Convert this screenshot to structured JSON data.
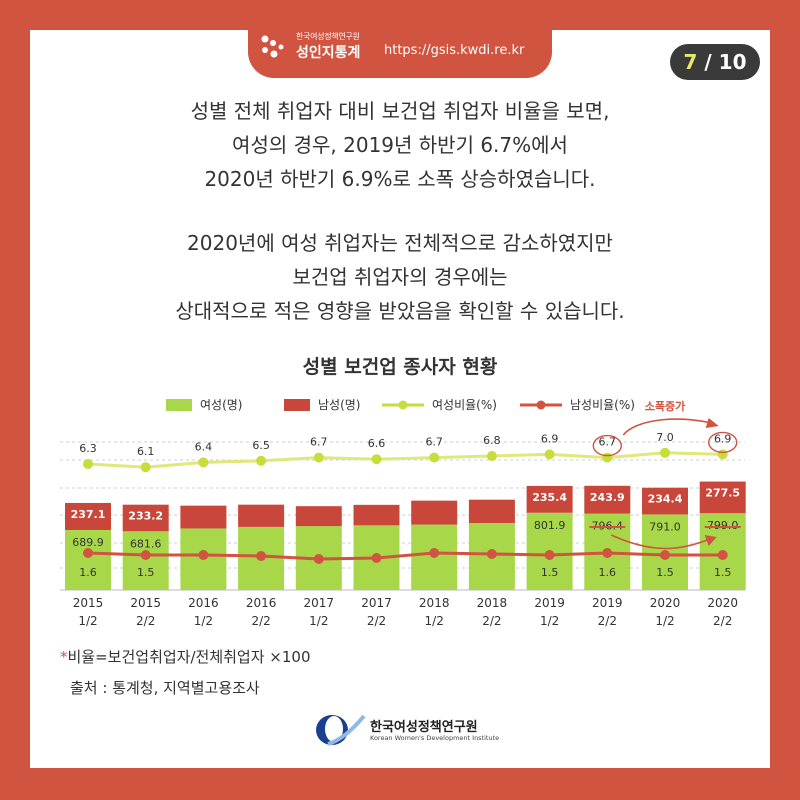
{
  "header": {
    "org_small": "한국여성정책연구원",
    "brand": "성인지통계",
    "url": "https://gsis.kwdi.re.kr",
    "page_current": "7",
    "page_total": "/ 10"
  },
  "intro": {
    "lines": [
      "성별 전체 취업자 대비 보건업 취업자 비율을 보면,",
      "여성의 경우, 2019년 하반기 6.7%에서",
      "2020년 하반기 6.9%로 소폭 상승하였습니다."
    ]
  },
  "body": {
    "lines": [
      "2020년에 여성 취업자는 전체적으로 감소하였지만",
      "보건업 취업자의 경우에는",
      "상대적으로 적은 영향을 받았음을 확인할 수 있습니다."
    ]
  },
  "chart_data": {
    "type": "bar",
    "title": "성별 보건업 종사자 현황",
    "stacked": true,
    "categories": [
      "2015\n1/2",
      "2015\n2/2",
      "2016\n1/2",
      "2016\n2/2",
      "2017\n1/2",
      "2017\n2/2",
      "2018\n1/2",
      "2018\n2/2",
      "2019\n1/2",
      "2019\n2/2",
      "2020\n1/2",
      "2020\n2/2"
    ],
    "series": [
      {
        "name": "여성(명)",
        "kind": "bar",
        "color": "#a8d84a",
        "values": [
          689.9,
          681.6,
          null,
          null,
          null,
          null,
          null,
          null,
          801.9,
          796.4,
          791.0,
          799.0
        ]
      },
      {
        "name": "남성(명)",
        "kind": "bar",
        "color": "#c9473a",
        "values": [
          237.1,
          233.2,
          null,
          null,
          null,
          null,
          null,
          null,
          235.4,
          243.9,
          234.4,
          277.5
        ]
      },
      {
        "name": "여성비율(%)",
        "kind": "line",
        "color": "#dfe87a",
        "values": [
          6.3,
          6.1,
          6.4,
          6.5,
          6.7,
          6.6,
          6.7,
          6.8,
          6.9,
          6.7,
          7.0,
          6.9
        ]
      },
      {
        "name": "남성비율(%)",
        "kind": "line",
        "color": "#d0543f",
        "values": [
          1.6,
          1.5,
          null,
          null,
          null,
          null,
          null,
          null,
          1.5,
          1.6,
          1.5,
          1.5
        ]
      }
    ],
    "annotation": "소폭증가",
    "colors": {
      "female": "#a8d84a",
      "male": "#c9473a",
      "female_rate": "#dfe87a",
      "male_rate": "#d0543f",
      "frame": "#d0543f"
    }
  },
  "notes": {
    "star": "*",
    "ratio": "비율=보건업취업자/전체취업자 ×100",
    "source": "출처 : 통계청, 지역별고용조사"
  },
  "footer": {
    "org_name": "한국여성정책연구원",
    "org_en": "Korean Women's Development Institute"
  }
}
